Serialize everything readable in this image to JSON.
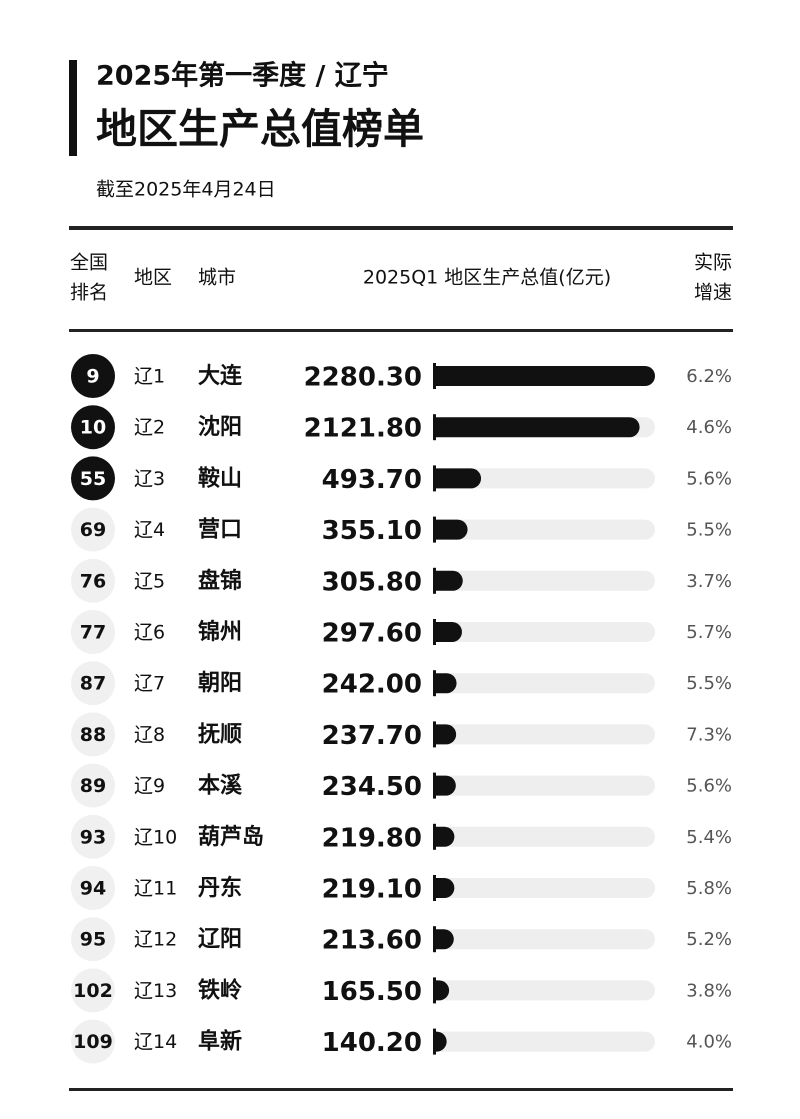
{
  "header": {
    "title_line1": "2025年第一季度 / 辽宁",
    "title_line2": "地区生产总值榜单",
    "subtitle": "截至2025年4月24日"
  },
  "table": {
    "columns": {
      "rank": [
        "全国",
        "排名"
      ],
      "region": "地区",
      "city": "城市",
      "gdp": "2025Q1 地区生产总值(亿元)",
      "growth": [
        "实际",
        "增速"
      ]
    },
    "rows": [
      {
        "rank": "9",
        "region": "辽1",
        "city": "大连",
        "gdp": "2280.30",
        "growth": "6.2%"
      },
      {
        "rank": "10",
        "region": "辽2",
        "city": "沈阳",
        "gdp": "2121.80",
        "growth": "4.6%"
      },
      {
        "rank": "55",
        "region": "辽3",
        "city": "鞍山",
        "gdp": "493.70",
        "growth": "5.6%"
      },
      {
        "rank": "69",
        "region": "辽4",
        "city": "营口",
        "gdp": "355.10",
        "growth": "5.5%"
      },
      {
        "rank": "76",
        "region": "辽5",
        "city": "盘锦",
        "gdp": "305.80",
        "growth": "3.7%"
      },
      {
        "rank": "77",
        "region": "辽6",
        "city": "锦州",
        "gdp": "297.60",
        "growth": "5.7%"
      },
      {
        "rank": "87",
        "region": "辽7",
        "city": "朝阳",
        "gdp": "242.00",
        "growth": "5.5%"
      },
      {
        "rank": "88",
        "region": "辽8",
        "city": "抚顺",
        "gdp": "237.70",
        "growth": "7.3%"
      },
      {
        "rank": "89",
        "region": "辽9",
        "city": "本溪",
        "gdp": "234.50",
        "growth": "5.6%"
      },
      {
        "rank": "93",
        "region": "辽10",
        "city": "葫芦岛",
        "gdp": "219.80",
        "growth": "5.4%"
      },
      {
        "rank": "94",
        "region": "辽11",
        "city": "丹东",
        "gdp": "219.10",
        "growth": "5.8%"
      },
      {
        "rank": "95",
        "region": "辽12",
        "city": "辽阳",
        "gdp": "213.60",
        "growth": "5.2%"
      },
      {
        "rank": "102",
        "region": "辽13",
        "city": "铁岭",
        "gdp": "165.50",
        "growth": "3.8%"
      },
      {
        "rank": "109",
        "region": "辽14",
        "city": "阜新",
        "gdp": "140.20",
        "growth": "4.0%"
      }
    ]
  }
}
